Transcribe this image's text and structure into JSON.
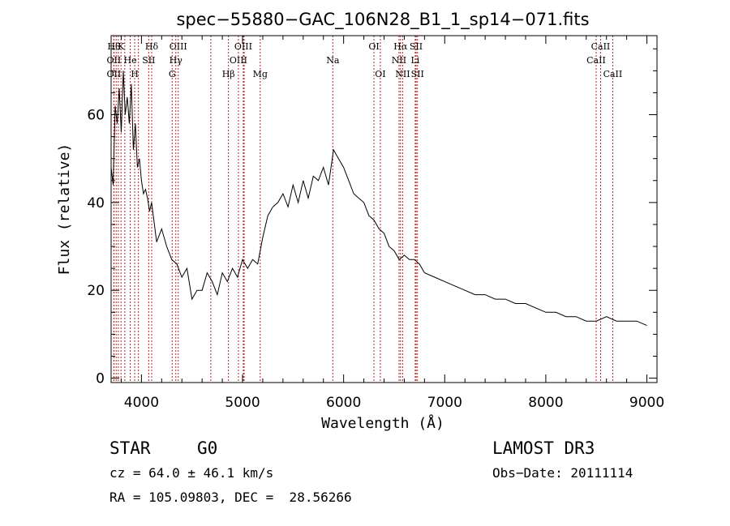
{
  "chart_data": {
    "type": "line",
    "title": "spec−55880−GAC_106N28_B1_1_sp14−071.fits",
    "xlabel": "Wavelength (Å)",
    "ylabel": "Flux (relative)",
    "xlim": [
      3700,
      9100
    ],
    "ylim": [
      -1,
      78
    ],
    "xticks_major": [
      4000,
      5000,
      6000,
      7000,
      8000,
      9000
    ],
    "xticks_minor_step": 200,
    "yticks_major": [
      0,
      20,
      40,
      60
    ],
    "yticks_minor_step": 5,
    "grid": false,
    "legend": "none",
    "line_color": "#000000",
    "marker_color": "#bb2222",
    "series": [
      {
        "x": [
          3700,
          3720,
          3740,
          3760,
          3780,
          3800,
          3820,
          3840,
          3860,
          3880,
          3900,
          3920,
          3940,
          3960,
          3980,
          4000,
          4020,
          4040,
          4060,
          4080,
          4100,
          4150,
          4200,
          4250,
          4300,
          4350,
          4400,
          4450,
          4500,
          4550,
          4600,
          4650,
          4700,
          4750,
          4800,
          4850,
          4900,
          4950,
          5000,
          5050,
          5100,
          5150,
          5200,
          5250,
          5300,
          5350,
          5400,
          5450,
          5500,
          5550,
          5600,
          5650,
          5700,
          5750,
          5800,
          5850,
          5900,
          5950,
          6000,
          6050,
          6100,
          6150,
          6200,
          6250,
          6300,
          6350,
          6400,
          6450,
          6500,
          6550,
          6600,
          6650,
          6700,
          6750,
          6800,
          6900,
          7000,
          7100,
          7200,
          7300,
          7400,
          7500,
          7600,
          7700,
          7800,
          7900,
          8000,
          8100,
          8200,
          8300,
          8400,
          8500,
          8600,
          8700,
          8800,
          8900,
          9000
        ],
        "y": [
          48,
          44,
          62,
          58,
          66,
          56,
          70,
          60,
          64,
          58,
          67,
          52,
          58,
          48,
          50,
          45,
          42,
          43,
          41,
          38,
          40,
          31,
          34,
          30,
          27,
          26,
          23,
          25,
          18,
          20,
          20,
          24,
          22,
          19,
          24,
          22,
          25,
          23,
          27,
          25,
          27,
          26,
          32,
          37,
          39,
          40,
          42,
          39,
          44,
          40,
          45,
          41,
          46,
          45,
          48,
          44,
          52,
          50,
          48,
          45,
          42,
          41,
          40,
          37,
          36,
          34,
          33,
          30,
          29,
          27,
          28,
          27,
          27,
          26,
          24,
          23,
          22,
          21,
          20,
          19,
          19,
          18,
          18,
          17,
          17,
          16,
          15,
          15,
          14,
          14,
          13,
          13,
          14,
          13,
          13,
          13,
          12
        ]
      }
    ],
    "lines_row1": [
      {
        "x": 3728,
        "label": "Hθ"
      },
      {
        "x": 3798,
        "label": "K"
      },
      {
        "x": 4101,
        "label": "Hδ"
      },
      {
        "x": 4364,
        "label": "OIII"
      },
      {
        "x": 5007,
        "label": "OIII"
      },
      {
        "x": 6300,
        "label": "OI"
      },
      {
        "x": 6563,
        "label": "Hα"
      },
      {
        "x": 6717,
        "label": "SII"
      },
      {
        "x": 8542,
        "label": "CaII"
      }
    ],
    "lines_row2": [
      {
        "x": 3727,
        "label": "OII"
      },
      {
        "x": 3889,
        "label": "He"
      },
      {
        "x": 4072,
        "label": "SII"
      },
      {
        "x": 4340,
        "label": "Hγ"
      },
      {
        "x": 4959,
        "label": "OIII"
      },
      {
        "x": 5893,
        "label": "Na"
      },
      {
        "x": 6548,
        "label": "NII"
      },
      {
        "x": 6708,
        "label": "Li"
      },
      {
        "x": 8498,
        "label": "CaII"
      }
    ],
    "lines_row3": [
      {
        "x": 3727,
        "label": "OII"
      },
      {
        "x": 3933,
        "label": "H"
      },
      {
        "x": 4304,
        "label": "G"
      },
      {
        "x": 4861,
        "label": "Hβ"
      },
      {
        "x": 5175,
        "label": "Mg"
      },
      {
        "x": 6363,
        "label": "OI"
      },
      {
        "x": 6584,
        "label": "NII"
      },
      {
        "x": 6731,
        "label": "SII"
      },
      {
        "x": 8662,
        "label": "CaII"
      }
    ],
    "extra_markers": [
      3750,
      3771,
      3835,
      3970,
      4686,
      5016
    ]
  },
  "info": {
    "object_class": "STAR",
    "subclass": "G0",
    "survey": "LAMOST DR3",
    "cz": "cz = 64.0 ± 46.1 km/s",
    "obs_date": "Obs−Date: 20111114",
    "radec": "RA = 105.09803, DEC =  28.56266"
  }
}
